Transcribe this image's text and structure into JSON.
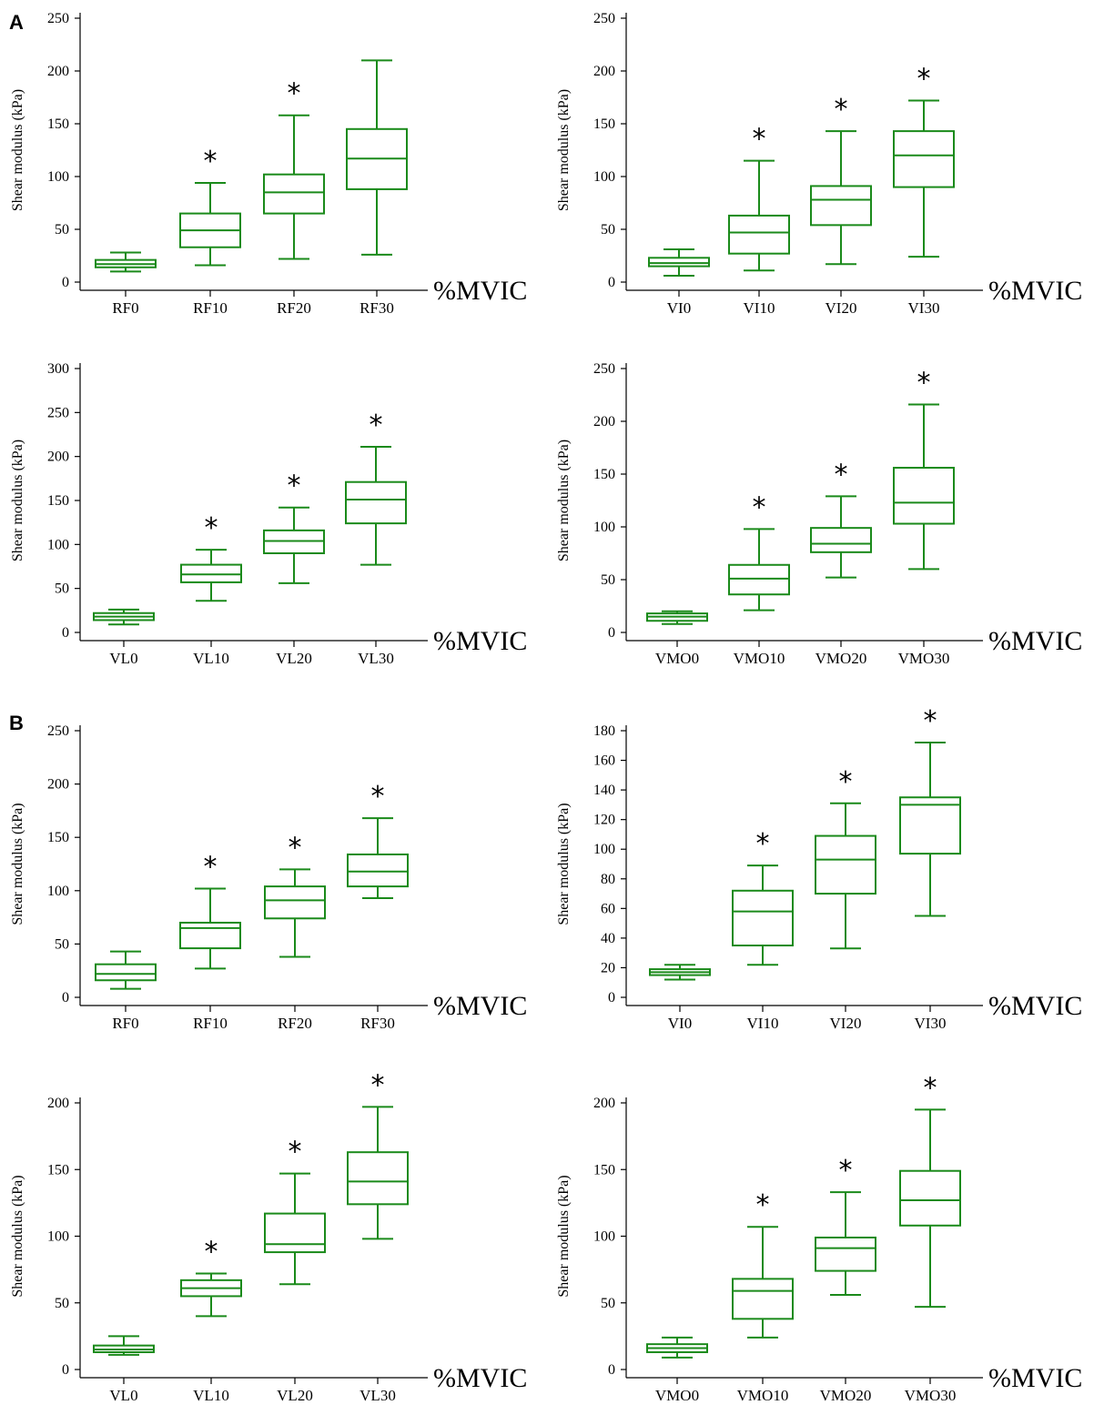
{
  "figure": {
    "panel_labels": [
      "A",
      "B"
    ],
    "colors": {
      "box": "#1a8a1a",
      "axis": "#000000"
    }
  },
  "chart_data": [
    {
      "type": "box",
      "panel": "A",
      "categories": [
        "RF0",
        "RF10",
        "RF20",
        "RF30"
      ],
      "ylabel": "Shear modulus (kPa)",
      "xunit": "%MVIC",
      "ylim": [
        0,
        250
      ],
      "yticks": [
        0,
        50,
        100,
        150,
        200,
        250
      ],
      "boxes": [
        {
          "min": 10,
          "q1": 14,
          "median": 17,
          "q3": 21,
          "max": 28
        },
        {
          "min": 16,
          "q1": 33,
          "median": 49,
          "q3": 65,
          "max": 94
        },
        {
          "min": 22,
          "q1": 65,
          "median": 85,
          "q3": 102,
          "max": 158
        },
        {
          "min": 26,
          "q1": 88,
          "median": 117,
          "q3": 145,
          "max": 210
        }
      ],
      "significant": [
        false,
        true,
        true,
        false
      ]
    },
    {
      "type": "box",
      "panel": "A",
      "categories": [
        "VI0",
        "VI10",
        "VI20",
        "VI30"
      ],
      "ylabel": "Shear modulus (kPa)",
      "xunit": "%MVIC",
      "ylim": [
        0,
        250
      ],
      "yticks": [
        0,
        50,
        100,
        150,
        200,
        250
      ],
      "boxes": [
        {
          "min": 6,
          "q1": 15,
          "median": 18,
          "q3": 23,
          "max": 31
        },
        {
          "min": 11,
          "q1": 27,
          "median": 47,
          "q3": 63,
          "max": 115
        },
        {
          "min": 17,
          "q1": 54,
          "median": 78,
          "q3": 91,
          "max": 143
        },
        {
          "min": 24,
          "q1": 90,
          "median": 120,
          "q3": 143,
          "max": 172
        }
      ],
      "significant": [
        false,
        true,
        true,
        true
      ]
    },
    {
      "type": "box",
      "panel": "A",
      "categories": [
        "VL0",
        "VL10",
        "VL20",
        "VL30"
      ],
      "ylabel": "Shear modulus (kPa)",
      "xunit": "%MVIC",
      "ylim": [
        0,
        300
      ],
      "yticks": [
        0,
        50,
        100,
        150,
        200,
        250,
        300
      ],
      "boxes": [
        {
          "min": 9,
          "q1": 14,
          "median": 18,
          "q3": 22,
          "max": 26
        },
        {
          "min": 36,
          "q1": 57,
          "median": 66,
          "q3": 77,
          "max": 94
        },
        {
          "min": 56,
          "q1": 90,
          "median": 104,
          "q3": 116,
          "max": 142
        },
        {
          "min": 77,
          "q1": 124,
          "median": 151,
          "q3": 171,
          "max": 211
        }
      ],
      "significant": [
        false,
        true,
        true,
        true
      ]
    },
    {
      "type": "box",
      "panel": "A",
      "categories": [
        "VMO0",
        "VMO10",
        "VMO20",
        "VMO30"
      ],
      "ylabel": "Shear modulus (kPa)",
      "xunit": "%MVIC",
      "ylim": [
        0,
        250
      ],
      "yticks": [
        0,
        50,
        100,
        150,
        200,
        250
      ],
      "boxes": [
        {
          "min": 8,
          "q1": 11,
          "median": 15,
          "q3": 18,
          "max": 20
        },
        {
          "min": 21,
          "q1": 36,
          "median": 51,
          "q3": 64,
          "max": 98
        },
        {
          "min": 52,
          "q1": 76,
          "median": 84,
          "q3": 99,
          "max": 129
        },
        {
          "min": 60,
          "q1": 103,
          "median": 123,
          "q3": 156,
          "max": 216
        }
      ],
      "significant": [
        false,
        true,
        true,
        true
      ]
    },
    {
      "type": "box",
      "panel": "B",
      "categories": [
        "RF0",
        "RF10",
        "RF20",
        "RF30"
      ],
      "ylabel": "Shear modulus (kPa)",
      "xunit": "%MVIC",
      "ylim": [
        0,
        250
      ],
      "yticks": [
        0,
        50,
        100,
        150,
        200,
        250
      ],
      "boxes": [
        {
          "min": 8,
          "q1": 16,
          "median": 22,
          "q3": 31,
          "max": 43
        },
        {
          "min": 27,
          "q1": 46,
          "median": 65,
          "q3": 70,
          "max": 102
        },
        {
          "min": 38,
          "q1": 74,
          "median": 91,
          "q3": 104,
          "max": 120
        },
        {
          "min": 93,
          "q1": 104,
          "median": 118,
          "q3": 134,
          "max": 168
        }
      ],
      "significant": [
        false,
        true,
        true,
        true
      ]
    },
    {
      "type": "box",
      "panel": "B",
      "categories": [
        "VI0",
        "VI10",
        "VI20",
        "VI30"
      ],
      "ylabel": "Shear modulus (kPa)",
      "xunit": "%MVIC",
      "ylim": [
        0,
        180
      ],
      "yticks": [
        0,
        20,
        40,
        60,
        80,
        100,
        120,
        140,
        160,
        180
      ],
      "boxes": [
        {
          "min": 12,
          "q1": 15,
          "median": 17,
          "q3": 19,
          "max": 22
        },
        {
          "min": 22,
          "q1": 35,
          "median": 58,
          "q3": 72,
          "max": 89
        },
        {
          "min": 33,
          "q1": 70,
          "median": 93,
          "q3": 109,
          "max": 131
        },
        {
          "min": 55,
          "q1": 97,
          "median": 130,
          "q3": 135,
          "max": 172
        }
      ],
      "significant": [
        false,
        true,
        true,
        true
      ]
    },
    {
      "type": "box",
      "panel": "B",
      "categories": [
        "VL0",
        "VL10",
        "VL20",
        "VL30"
      ],
      "ylabel": "Shear modulus (kPa)",
      "xunit": "%MVIC",
      "ylim": [
        0,
        200
      ],
      "yticks": [
        0,
        50,
        100,
        150,
        200
      ],
      "boxes": [
        {
          "min": 11,
          "q1": 13,
          "median": 15,
          "q3": 18,
          "max": 25
        },
        {
          "min": 40,
          "q1": 55,
          "median": 61,
          "q3": 67,
          "max": 72
        },
        {
          "min": 64,
          "q1": 88,
          "median": 94,
          "q3": 117,
          "max": 147
        },
        {
          "min": 98,
          "q1": 124,
          "median": 141,
          "q3": 163,
          "max": 197
        }
      ],
      "significant": [
        false,
        true,
        true,
        true
      ]
    },
    {
      "type": "box",
      "panel": "B",
      "categories": [
        "VMO0",
        "VMO10",
        "VMO20",
        "VMO30"
      ],
      "ylabel": "Shear modulus (kPa)",
      "xunit": "%MVIC",
      "ylim": [
        0,
        200
      ],
      "yticks": [
        0,
        50,
        100,
        150,
        200
      ],
      "boxes": [
        {
          "min": 9,
          "q1": 13,
          "median": 16,
          "q3": 19,
          "max": 24
        },
        {
          "min": 24,
          "q1": 38,
          "median": 59,
          "q3": 68,
          "max": 107
        },
        {
          "min": 56,
          "q1": 74,
          "median": 91,
          "q3": 99,
          "max": 133
        },
        {
          "min": 47,
          "q1": 108,
          "median": 127,
          "q3": 149,
          "max": 195
        }
      ],
      "significant": [
        false,
        true,
        true,
        true
      ]
    }
  ]
}
